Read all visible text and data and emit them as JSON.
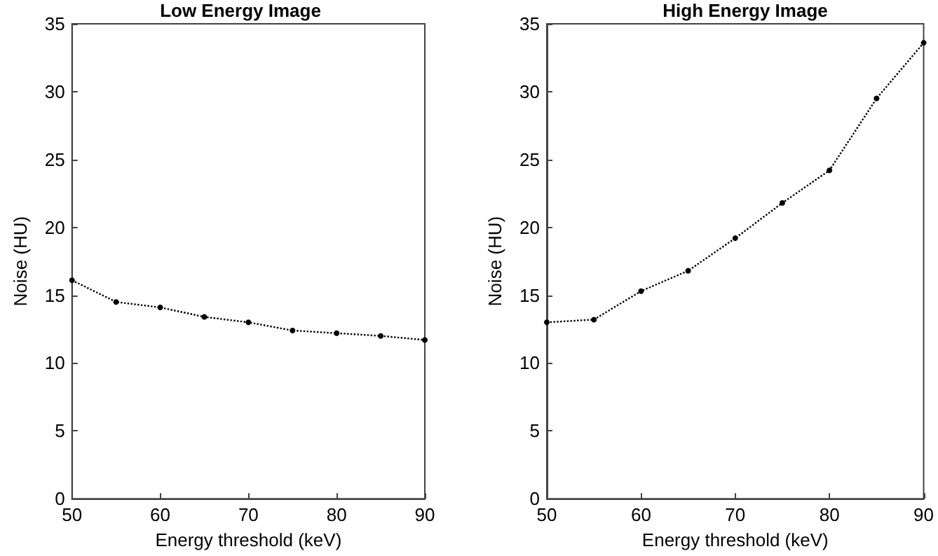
{
  "chart_data": [
    {
      "type": "line",
      "title": "Low Energy Image",
      "xlabel": "Energy threshold (keV)",
      "ylabel": "Noise (HU)",
      "x": [
        50,
        55,
        60,
        65,
        70,
        75,
        80,
        85,
        90
      ],
      "series": [
        {
          "color": "#000000",
          "values": [
            16.1,
            14.5,
            14.1,
            13.4,
            13.0,
            12.4,
            12.2,
            12.0,
            11.7
          ]
        }
      ],
      "xlim": [
        50,
        90
      ],
      "xticks": [
        50,
        60,
        70,
        80,
        90
      ],
      "ylim": [
        0,
        35
      ],
      "yticks": [
        0,
        5,
        10,
        15,
        20,
        25,
        30,
        35
      ],
      "marker": "circle",
      "line_style": "dotted"
    },
    {
      "type": "line",
      "title": "High Energy Image",
      "xlabel": "Energy threshold (keV)",
      "ylabel": "Noise (HU)",
      "x": [
        50,
        55,
        60,
        65,
        70,
        75,
        80,
        85,
        90
      ],
      "series": [
        {
          "color": "#000000",
          "values": [
            13.0,
            13.2,
            15.3,
            16.8,
            19.2,
            21.8,
            24.2,
            29.5,
            33.6
          ]
        }
      ],
      "xlim": [
        50,
        90
      ],
      "xticks": [
        50,
        60,
        70,
        80,
        90
      ],
      "ylim": [
        0,
        35
      ],
      "yticks": [
        0,
        5,
        10,
        15,
        20,
        25,
        30,
        35
      ],
      "marker": "circle",
      "line_style": "dotted"
    }
  ]
}
